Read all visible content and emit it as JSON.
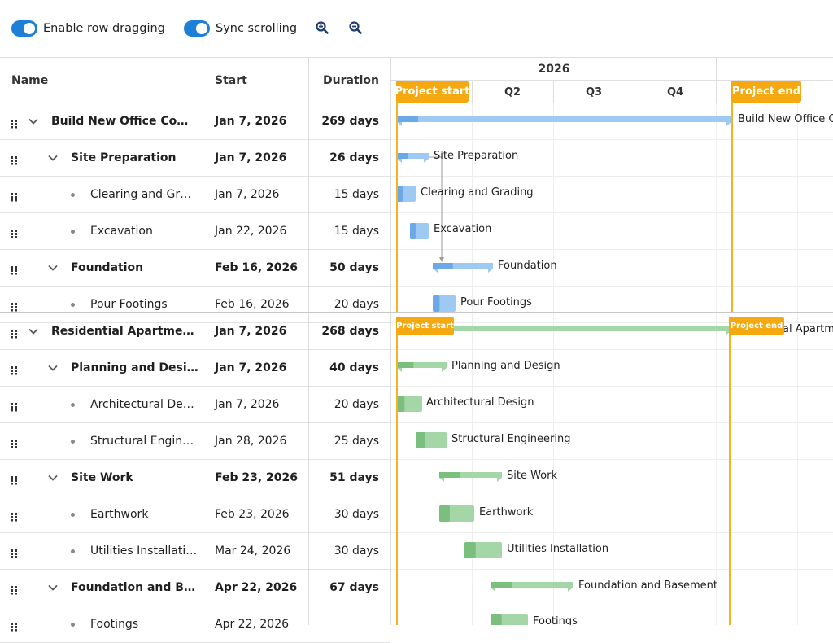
{
  "toolbar": {
    "row_dragging_label": "Enable row dragging",
    "sync_scrolling_label": "Sync scrolling",
    "zoom_in_icon": "zoom-in-icon",
    "zoom_out_icon": "zoom-out-icon"
  },
  "columns": {
    "name": "Name",
    "start": "Start",
    "duration": "Duration"
  },
  "timeline": {
    "year": "2026",
    "quarters": [
      "Q2",
      "Q3",
      "Q4"
    ],
    "project_start": "Project start",
    "project_end": "Project end"
  },
  "colors": {
    "accent": "#1e7fd6",
    "blue_bar": "#9ec9f2",
    "green_bar": "#a5d6a7",
    "marker": "#f5a80f"
  },
  "top_rows": [
    {
      "name": "Build New Office Comp…",
      "start": "Jan 7, 2026",
      "duration": "269 days",
      "level": 0,
      "bold": true
    },
    {
      "name": "Site Preparation",
      "start": "Jan 7, 2026",
      "duration": "26 days",
      "level": 1,
      "bold": true
    },
    {
      "name": "Clearing and Gr…",
      "start": "Jan 7, 2026",
      "duration": "15 days",
      "level": 2,
      "bold": false
    },
    {
      "name": "Excavation",
      "start": "Jan 22, 2026",
      "duration": "15 days",
      "level": 2,
      "bold": false
    },
    {
      "name": "Foundation",
      "start": "Feb 16, 2026",
      "duration": "50 days",
      "level": 1,
      "bold": true
    },
    {
      "name": "Pour Footings",
      "start": "Feb 16, 2026",
      "duration": "20 days",
      "level": 2,
      "bold": false
    }
  ],
  "bottom_rows": [
    {
      "name": "Residential Apartment …",
      "start": "Jan 7, 2026",
      "duration": "268 days",
      "level": 0,
      "bold": true
    },
    {
      "name": "Planning and Design",
      "start": "Jan 7, 2026",
      "duration": "40 days",
      "level": 1,
      "bold": true
    },
    {
      "name": "Architectural De…",
      "start": "Jan 7, 2026",
      "duration": "20 days",
      "level": 2,
      "bold": false
    },
    {
      "name": "Structural Engin…",
      "start": "Jan 28, 2026",
      "duration": "25 days",
      "level": 2,
      "bold": false
    },
    {
      "name": "Site Work",
      "start": "Feb 23, 2026",
      "duration": "51 days",
      "level": 1,
      "bold": true
    },
    {
      "name": "Earthwork",
      "start": "Feb 23, 2026",
      "duration": "30 days",
      "level": 2,
      "bold": false
    },
    {
      "name": "Utilities Installati…",
      "start": "Mar 24, 2026",
      "duration": "30 days",
      "level": 2,
      "bold": false
    },
    {
      "name": "Foundation and Ba…",
      "start": "Apr 22, 2026",
      "duration": "67 days",
      "level": 1,
      "bold": true
    },
    {
      "name": "Footings",
      "start": "Apr 22, 2026",
      "duration": "",
      "level": 2,
      "bold": false
    }
  ],
  "top_bar_labels": [
    "Build New Office Co",
    "Site Preparation",
    "Clearing and Grading",
    "Excavation",
    "Foundation",
    "Pour Footings"
  ],
  "bottom_bar_labels": [
    "al Apartm",
    "Planning and Design",
    "Architectural Design",
    "Structural Engineering",
    "Site Work",
    "Earthwork",
    "Utilities Installation",
    "Foundation and Basement",
    "Footings"
  ]
}
